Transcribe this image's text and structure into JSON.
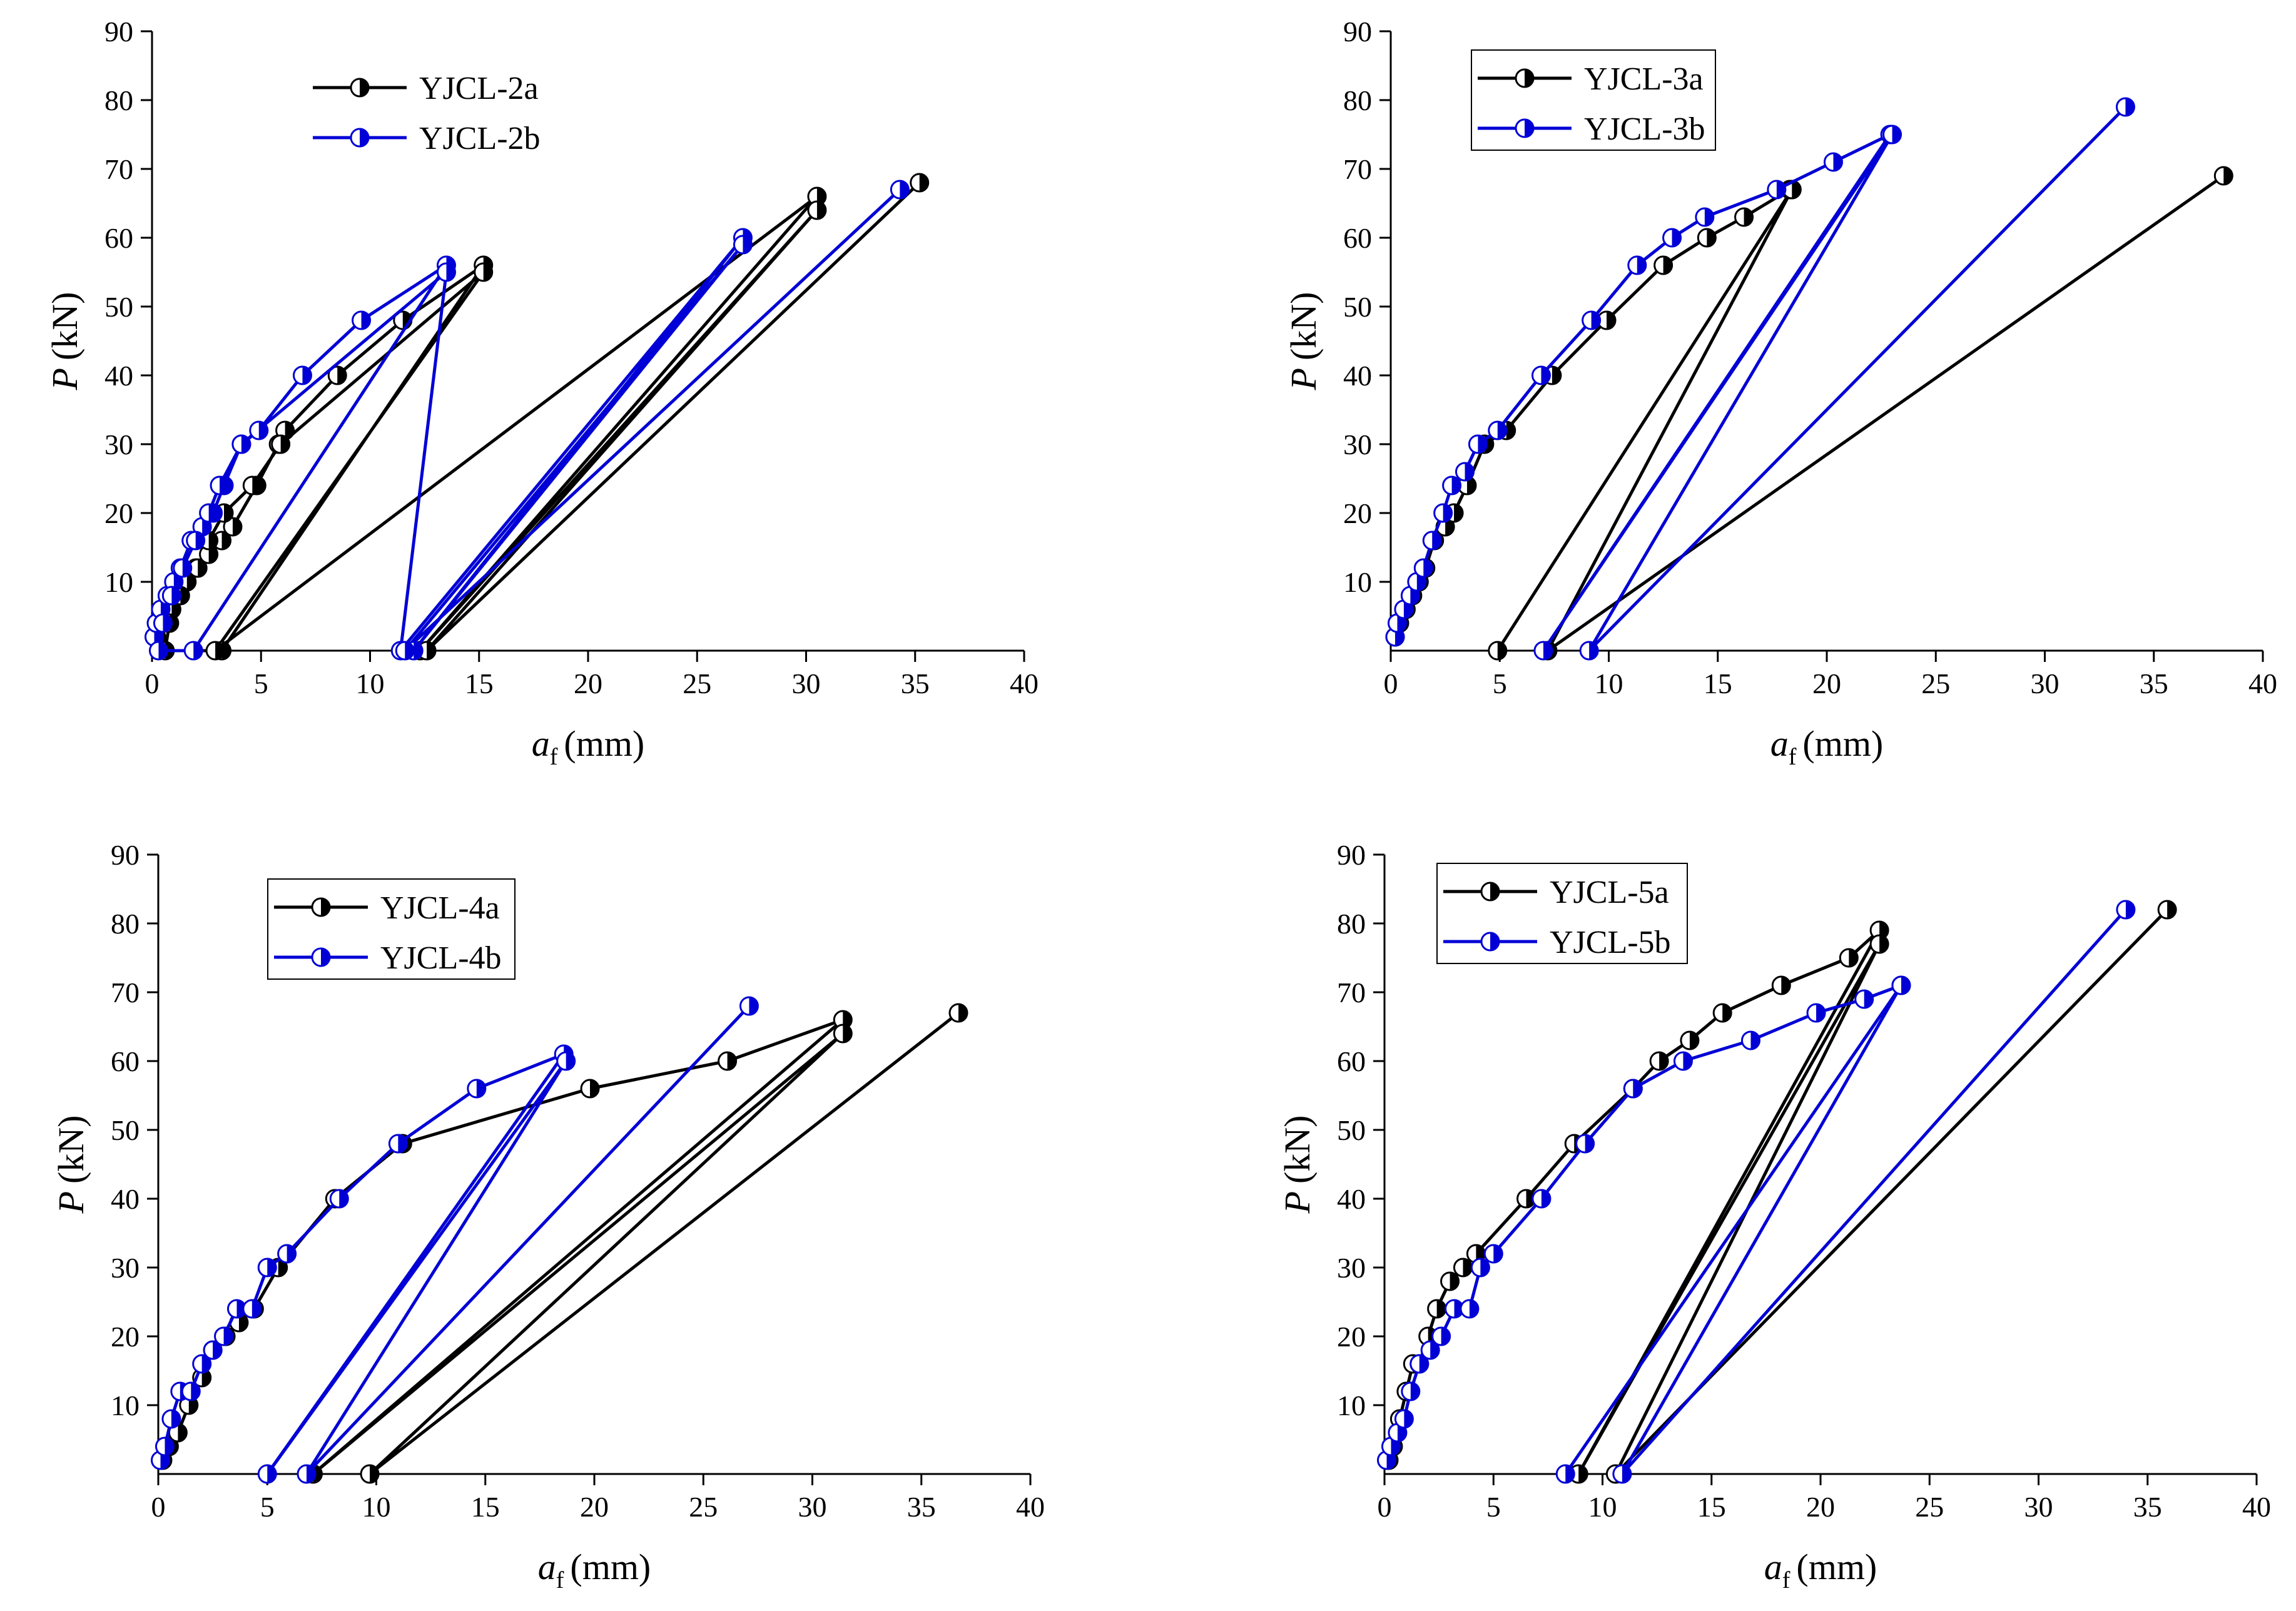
{
  "colors": {
    "series_a": "#000000",
    "series_b": "#0000d6",
    "axis": "#000000"
  },
  "chart_data": [
    {
      "type": "line",
      "xlabel": "a",
      "xlabel_sub": "f",
      "xlabel_unit": "(mm)",
      "ylabel": "P",
      "ylabel_unit": "(kN)",
      "xlim": [
        0,
        40
      ],
      "ylim": [
        0,
        90
      ],
      "xticks": [
        0,
        5,
        10,
        15,
        20,
        25,
        30,
        35,
        40
      ],
      "yticks": [
        10,
        20,
        30,
        40,
        50,
        60,
        70,
        80,
        90
      ],
      "legend_position": "top-left",
      "legend_boxed": false,
      "series": [
        {
          "name": "YJCL-2a",
          "x": [
            0.2,
            0.5,
            0.9,
            1.2,
            1.6,
            2.0,
            2.6,
            3.2,
            3.7,
            4.8,
            5.8,
            6.1,
            8.5,
            11.5,
            15.2,
            3.2,
            0.6,
            0.8,
            1.3,
            2.1,
            2.6,
            3.3,
            4.6,
            5.9,
            15.2,
            2.9,
            30.5,
            12.3,
            30.5,
            12.6,
            35.2
          ],
          "y": [
            2,
            4,
            6,
            8,
            10,
            12,
            14,
            16,
            18,
            24,
            30,
            32,
            40,
            48,
            56,
            0,
            0,
            4,
            8,
            12,
            16,
            20,
            24,
            30,
            55,
            0,
            66,
            0,
            64,
            0,
            68
          ]
        },
        {
          "name": "YJCL-2b",
          "x": [
            0.1,
            0.2,
            0.4,
            0.7,
            1.0,
            1.3,
            1.8,
            2.3,
            2.8,
            3.3,
            4.1,
            4.9,
            6.9,
            9.6,
            13.5,
            1.9,
            0.3,
            0.5,
            0.9,
            1.4,
            2.0,
            2.6,
            3.1,
            4.1,
            13.5,
            11.4,
            27.1,
            12.0,
            27.1,
            11.6,
            34.3
          ],
          "y": [
            2,
            4,
            6,
            8,
            10,
            12,
            16,
            18,
            20,
            24,
            30,
            32,
            40,
            48,
            56,
            0,
            0,
            4,
            8,
            12,
            16,
            20,
            24,
            30,
            55,
            0,
            60,
            0,
            59,
            0,
            67
          ]
        }
      ]
    },
    {
      "type": "line",
      "xlabel": "a",
      "xlabel_sub": "f",
      "xlabel_unit": "(mm)",
      "ylabel": "P",
      "ylabel_unit": "(kN)",
      "xlim": [
        0,
        40
      ],
      "ylim": [
        0,
        90
      ],
      "xticks": [
        0,
        5,
        10,
        15,
        20,
        25,
        30,
        35,
        40
      ],
      "yticks": [
        10,
        20,
        30,
        40,
        50,
        60,
        70,
        80,
        90
      ],
      "legend_position": "top-left",
      "legend_boxed": true,
      "series": [
        {
          "name": "YJCL-3a",
          "x": [
            0.2,
            0.4,
            0.7,
            1.0,
            1.3,
            1.6,
            2.0,
            2.5,
            2.9,
            3.5,
            4.3,
            5.3,
            7.4,
            9.9,
            12.5,
            14.5,
            16.2,
            18.3,
            18.4,
            4.9,
            18.4,
            7.2,
            38.2
          ],
          "y": [
            2,
            4,
            6,
            8,
            10,
            12,
            16,
            18,
            20,
            24,
            30,
            32,
            40,
            48,
            56,
            60,
            63,
            67,
            67,
            0,
            67,
            0,
            69
          ]
        },
        {
          "name": "YJCL-3b",
          "x": [
            0.2,
            0.3,
            0.6,
            0.9,
            1.2,
            1.5,
            1.9,
            2.4,
            2.8,
            3.4,
            4.0,
            4.9,
            6.9,
            9.2,
            11.3,
            12.9,
            14.4,
            17.7,
            20.3,
            22.9,
            7.0,
            23.0,
            9.1,
            33.7
          ],
          "y": [
            2,
            4,
            6,
            8,
            10,
            12,
            16,
            20,
            24,
            26,
            30,
            32,
            40,
            48,
            56,
            60,
            63,
            67,
            71,
            75,
            0,
            75,
            0,
            79
          ]
        }
      ]
    },
    {
      "type": "line",
      "xlabel": "a",
      "xlabel_sub": "f",
      "xlabel_unit": "(mm)",
      "ylabel": "P",
      "ylabel_unit": "(kN)",
      "xlim": [
        0,
        40
      ],
      "ylim": [
        0,
        90
      ],
      "xticks": [
        0,
        5,
        10,
        15,
        20,
        25,
        30,
        35,
        40
      ],
      "yticks": [
        10,
        20,
        30,
        40,
        50,
        60,
        70,
        80,
        90
      ],
      "legend_position": "top-left",
      "legend_boxed": true,
      "series": [
        {
          "name": "YJCL-4a",
          "x": [
            0.2,
            0.5,
            0.9,
            1.4,
            2.0,
            2.5,
            3.1,
            3.7,
            4.4,
            5.5,
            8.1,
            11.2,
            19.8,
            26.1,
            31.4,
            7.1,
            31.4,
            9.7,
            36.7
          ],
          "y": [
            2,
            4,
            6,
            10,
            14,
            18,
            20,
            22,
            24,
            30,
            40,
            48,
            56,
            60,
            66,
            0,
            64,
            0,
            67
          ]
        },
        {
          "name": "YJCL-4b",
          "x": [
            0.1,
            0.3,
            0.6,
            1.0,
            1.5,
            2.0,
            2.5,
            3.0,
            3.6,
            4.3,
            5.0,
            5.9,
            8.3,
            11.0,
            14.6,
            18.6,
            5.0,
            18.7,
            6.8,
            27.1
          ],
          "y": [
            2,
            4,
            8,
            12,
            12,
            16,
            18,
            20,
            24,
            24,
            30,
            32,
            40,
            48,
            56,
            61,
            0,
            60,
            0,
            68
          ]
        }
      ]
    },
    {
      "type": "line",
      "xlabel": "a",
      "xlabel_sub": "f",
      "xlabel_unit": "(mm)",
      "ylabel": "P",
      "ylabel_unit": "(kN)",
      "xlim": [
        0,
        40
      ],
      "ylim": [
        0,
        90
      ],
      "xticks": [
        0,
        5,
        10,
        15,
        20,
        25,
        30,
        35,
        40
      ],
      "yticks": [
        10,
        20,
        30,
        40,
        50,
        60,
        70,
        80,
        90
      ],
      "legend_position": "top-left",
      "legend_boxed": true,
      "series": [
        {
          "name": "YJCL-5a",
          "x": [
            0.2,
            0.4,
            0.7,
            1.0,
            1.3,
            1.6,
            2.0,
            2.4,
            3.0,
            3.6,
            4.2,
            6.5,
            8.7,
            11.4,
            12.6,
            14.0,
            15.5,
            18.2,
            21.3,
            22.7,
            8.9,
            22.7,
            10.6,
            35.9
          ],
          "y": [
            2,
            4,
            8,
            12,
            16,
            16,
            20,
            24,
            28,
            30,
            32,
            40,
            48,
            56,
            60,
            63,
            67,
            71,
            75,
            79,
            0,
            77,
            0,
            82
          ]
        },
        {
          "name": "YJCL-5b",
          "x": [
            0.1,
            0.3,
            0.6,
            0.9,
            1.2,
            1.6,
            2.1,
            2.6,
            3.2,
            3.9,
            4.4,
            5.0,
            7.2,
            9.2,
            11.4,
            13.7,
            16.8,
            19.8,
            22.0,
            23.7,
            8.3,
            23.7,
            10.9,
            34.0
          ],
          "y": [
            2,
            4,
            6,
            8,
            12,
            16,
            18,
            20,
            24,
            24,
            30,
            32,
            40,
            48,
            56,
            60,
            63,
            67,
            69,
            71,
            0,
            71,
            0,
            82
          ]
        }
      ]
    }
  ]
}
